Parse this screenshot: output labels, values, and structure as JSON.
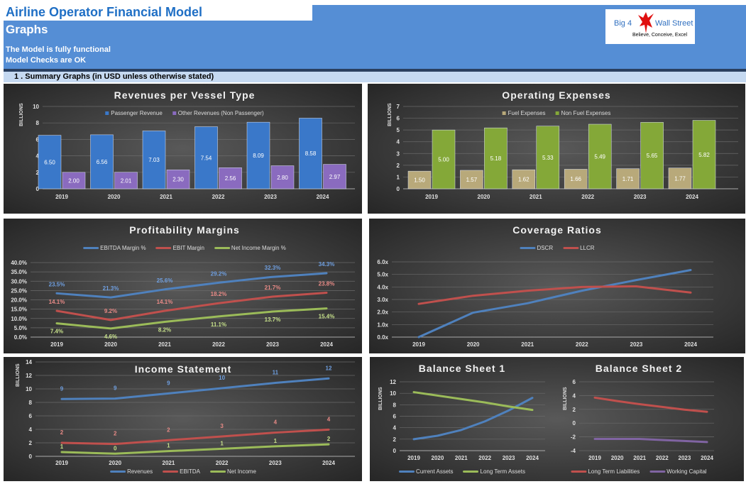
{
  "header": {
    "title": "Airline Operator Financial Model",
    "subtitle": "Graphs",
    "status1": "The Model is fully functional",
    "status2": "Model Checks are OK",
    "logo": {
      "left": "Big 4",
      "right": "Wall Street",
      "tagline": "Believe, Conceive, Excel"
    },
    "section": "1 .  Summary Graphs (in USD unless otherwise stated)"
  },
  "chart_data": [
    {
      "id": "revenues",
      "type": "bar",
      "title": "Revenues per Vessel Type",
      "ylabel": "BILLIONS",
      "ylim": [
        0,
        10
      ],
      "yticks": [
        "0",
        "2",
        "4",
        "6",
        "8",
        "10"
      ],
      "categories": [
        "2019",
        "2020",
        "2021",
        "2022",
        "2023",
        "2024"
      ],
      "legend": "top",
      "series": [
        {
          "name": "Passenger Revenue",
          "color": "#3a78c9",
          "values": [
            6.5,
            6.56,
            7.03,
            7.54,
            8.09,
            8.58
          ],
          "labels": [
            "6.50",
            "6.56",
            "7.03",
            "7.54",
            "8.09",
            "8.58"
          ]
        },
        {
          "name": "Other Revenues (Non Passenger)",
          "color": "#8a6bbf",
          "values": [
            2.0,
            2.01,
            2.3,
            2.56,
            2.8,
            2.97
          ],
          "labels": [
            "2.00",
            "2.01",
            "2.30",
            "2.56",
            "2.80",
            "2.97"
          ]
        }
      ]
    },
    {
      "id": "opex",
      "type": "bar",
      "title": "Operating Expenses",
      "ylabel": "BILLIONS",
      "ylim": [
        0,
        7
      ],
      "yticks": [
        "0",
        "1",
        "2",
        "3",
        "4",
        "5",
        "6",
        "7"
      ],
      "categories": [
        "2019",
        "2020",
        "2021",
        "2022",
        "2023",
        "2024"
      ],
      "legend": "top",
      "series": [
        {
          "name": "Fuel Expenses",
          "color": "#b8a97a",
          "values": [
            1.5,
            1.57,
            1.62,
            1.66,
            1.71,
            1.77
          ],
          "labels": [
            "1.50",
            "1.57",
            "1.62",
            "1.66",
            "1.71",
            "1.77"
          ]
        },
        {
          "name": "Non Fuel Expenses",
          "color": "#84a838",
          "values": [
            5.0,
            5.18,
            5.33,
            5.49,
            5.65,
            5.82
          ],
          "labels": [
            "5.00",
            "5.18",
            "5.33",
            "5.49",
            "5.65",
            "5.82"
          ]
        }
      ]
    },
    {
      "id": "margins",
      "type": "line",
      "title": "Profitability Margins",
      "ylim": [
        0,
        40
      ],
      "yticks": [
        "0.0%",
        "5.0%",
        "10.0%",
        "15.0%",
        "20.0%",
        "25.0%",
        "30.0%",
        "35.0%",
        "40.0%"
      ],
      "categories": [
        "2019",
        "2020",
        "2021",
        "2022",
        "2023",
        "2024"
      ],
      "legend": "top",
      "series": [
        {
          "name": "EBITDA Margin %",
          "color": "#4f81bd",
          "values": [
            23.5,
            21.3,
            25.6,
            29.2,
            32.3,
            34.3
          ],
          "labels": [
            "23.5%",
            "21.3%",
            "25.6%",
            "29.2%",
            "32.3%",
            "34.3%"
          ]
        },
        {
          "name": "EBIT Margin",
          "color": "#c0504d",
          "values": [
            14.1,
            9.2,
            14.1,
            18.2,
            21.7,
            23.8
          ],
          "labels": [
            "14.1%",
            "9.2%",
            "14.1%",
            "18.2%",
            "21.7%",
            "23.8%"
          ]
        },
        {
          "name": "Net Income Margin %",
          "color": "#9bbb59",
          "values": [
            7.4,
            4.6,
            8.2,
            11.1,
            13.7,
            15.4
          ],
          "labels": [
            "7.4%",
            "4.6%",
            "8.2%",
            "11.1%",
            "13.7%",
            "15.4%"
          ]
        }
      ]
    },
    {
      "id": "coverage",
      "type": "line",
      "title": "Coverage Ratios",
      "ylim": [
        0,
        6
      ],
      "yticks": [
        "0.0x",
        "1.0x",
        "2.0x",
        "3.0x",
        "4.0x",
        "5.0x",
        "6.0x"
      ],
      "categories": [
        "2019",
        "2020",
        "2021",
        "2022",
        "2023",
        "2024"
      ],
      "legend": "top",
      "series": [
        {
          "name": "DSCR",
          "color": "#4f81bd",
          "values": [
            0.0,
            1.95,
            2.7,
            3.7,
            4.55,
            5.35
          ]
        },
        {
          "name": "LLCR",
          "color": "#c0504d",
          "values": [
            2.65,
            3.3,
            3.7,
            4.0,
            4.05,
            3.55
          ]
        }
      ]
    },
    {
      "id": "income",
      "type": "line",
      "title": "Income Statement",
      "ylabel": "BILLIONS",
      "ylim": [
        0,
        14
      ],
      "yticks": [
        "0",
        "2",
        "4",
        "6",
        "8",
        "10",
        "12",
        "14"
      ],
      "categories": [
        "2019",
        "2020",
        "2021",
        "2022",
        "2023",
        "2024"
      ],
      "legend": "bottom",
      "series": [
        {
          "name": "Revenues",
          "color": "#4f81bd",
          "values": [
            8.5,
            8.57,
            9.33,
            10.1,
            10.89,
            11.55
          ],
          "labels": [
            "9",
            "9",
            "9",
            "10",
            "11",
            "12"
          ]
        },
        {
          "name": "EBITDA",
          "color": "#c0504d",
          "values": [
            2.0,
            1.83,
            2.39,
            2.95,
            3.52,
            3.96
          ],
          "labels": [
            "2",
            "2",
            "2",
            "3",
            "4",
            "4"
          ]
        },
        {
          "name": "Net Income",
          "color": "#9bbb59",
          "values": [
            0.63,
            0.39,
            0.77,
            1.12,
            1.49,
            1.78
          ],
          "labels": [
            "1",
            "0",
            "1",
            "1",
            "1",
            "2"
          ]
        }
      ]
    },
    {
      "id": "bs1",
      "type": "line",
      "title": "Balance Sheet 1",
      "ylabel": "BILLIONS",
      "ylim": [
        0,
        12
      ],
      "yticks": [
        "0",
        "2",
        "4",
        "6",
        "8",
        "10",
        "12"
      ],
      "categories": [
        "2019",
        "2020",
        "2021",
        "2022",
        "2023",
        "2024"
      ],
      "legend": "bottom",
      "series": [
        {
          "name": "Current Assets",
          "color": "#4f81bd",
          "values": [
            2.0,
            2.6,
            3.6,
            5.1,
            7.0,
            9.2
          ]
        },
        {
          "name": "Long Term Assets",
          "color": "#9bbb59",
          "values": [
            10.2,
            9.6,
            9.0,
            8.4,
            7.7,
            7.1
          ]
        }
      ]
    },
    {
      "id": "bs2",
      "type": "line",
      "title": "Balance Sheet 2",
      "ylabel": "BILLIONS",
      "ylim": [
        -4,
        6
      ],
      "yticks": [
        "-4",
        "-2",
        "0",
        "2",
        "4",
        "6"
      ],
      "categories": [
        "2019",
        "2020",
        "2021",
        "2022",
        "2023",
        "2024"
      ],
      "legend": "bottom",
      "series": [
        {
          "name": "Long Term Liabilities",
          "color": "#c0504d",
          "values": [
            3.7,
            3.2,
            2.75,
            2.35,
            1.95,
            1.65
          ]
        },
        {
          "name": "Working Capital",
          "color": "#8064a2",
          "values": [
            -2.3,
            -2.3,
            -2.3,
            -2.45,
            -2.6,
            -2.75
          ]
        }
      ]
    }
  ]
}
